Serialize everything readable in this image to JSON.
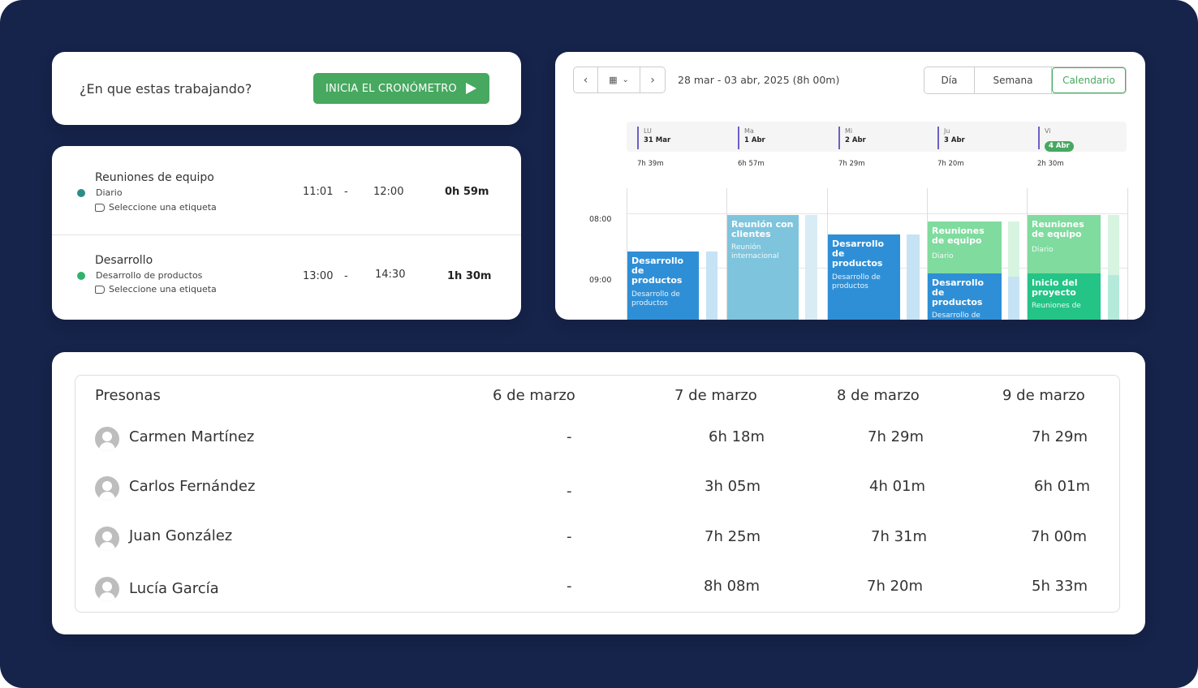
{
  "timer": {
    "question": "¿En que estas trabajando?",
    "start_label": "INICIA EL CRONÓMETRO",
    "accent": "#47a860"
  },
  "entries": [
    {
      "title": "Reuniones de equipo",
      "project": "Diario",
      "tag": "Seleccione una etiqueta",
      "start": "11:01",
      "sep": "-",
      "end": "12:00",
      "duration": "0h 59m",
      "color": "#2c8c8c"
    },
    {
      "title": "Desarrollo",
      "project": "Desarrollo de productos",
      "tag": "Seleccione una etiqueta",
      "start": "13:00",
      "sep": "-",
      "end": "14:30",
      "duration": "1h 30m",
      "color": "#2fb36a"
    }
  ],
  "calendar": {
    "range": "28 mar - 03 abr, 2025 (8h 00m)",
    "views": [
      "Día",
      "Semana",
      "Calendario"
    ],
    "active_view": "Calendario",
    "days": [
      {
        "abbr": "LU",
        "date": "31 Mar",
        "total": "7h 39m"
      },
      {
        "abbr": "Ma",
        "date": "1 Abr",
        "total": "6h 57m"
      },
      {
        "abbr": "Mi",
        "date": "2 Abr",
        "total": "7h 29m"
      },
      {
        "abbr": "Ju",
        "date": "3 Abr",
        "total": "7h 20m"
      },
      {
        "abbr": "Vi",
        "date": "4 Abr",
        "total": "2h 30m",
        "today": true
      }
    ],
    "hours": [
      "08:00",
      "09:00"
    ],
    "events": [
      {
        "title": "Desarrollo de productos",
        "sub": "Desarrollo de productos",
        "color": "#2f8fd6"
      },
      {
        "title": "Reunión con clientes",
        "sub": "Reunión internacional",
        "color": "#7ec4dd"
      },
      {
        "title": "Desarrollo de productos",
        "sub": "Desarrollo de productos",
        "color": "#2f8fd6"
      },
      {
        "title": "Reuniones de equipo",
        "sub": "Diario",
        "color": "#7fdb9e"
      },
      {
        "title": "Desarrollo de productos",
        "sub": "Desarrollo de",
        "color": "#2f8fd6"
      },
      {
        "title": "Reuniones de equipo",
        "sub": "Diario",
        "color": "#7fdb9e"
      },
      {
        "title": "Inicio del proyecto",
        "sub": "Reuniones de",
        "color": "#23c486"
      }
    ]
  },
  "table": {
    "headers": [
      "Presonas",
      "6 de marzo",
      "7 de marzo",
      "8 de marzo",
      "9 de marzo"
    ],
    "rows": [
      {
        "name": "Carmen Martínez",
        "values": [
          "-",
          "6h 18m",
          "7h 29m",
          "7h 29m"
        ]
      },
      {
        "name": "Carlos Fernández",
        "values": [
          "-",
          "3h 05m",
          "4h 01m",
          "6h 01m"
        ]
      },
      {
        "name": "Juan González",
        "values": [
          "-",
          "7h 25m",
          "7h 31m",
          "7h 00m"
        ]
      },
      {
        "name": "Lucía García",
        "values": [
          "-",
          "8h 08m",
          "7h 20m",
          "5h 33m"
        ]
      }
    ]
  }
}
